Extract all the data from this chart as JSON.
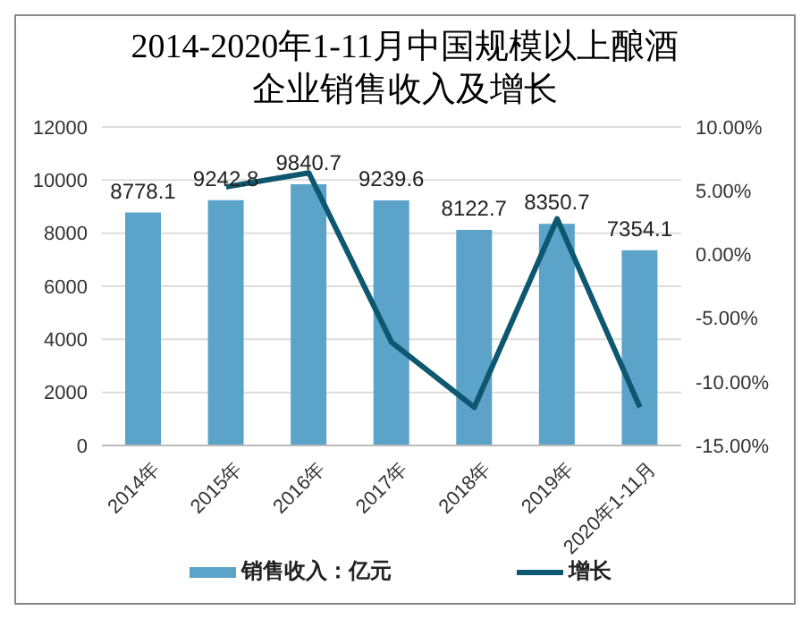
{
  "chart_data": {
    "type": "bar",
    "title": "2014-2020年1-11月中国规模以上酿酒企业销售收入及增长",
    "categories": [
      "2014年",
      "2015年",
      "2016年",
      "2017年",
      "2018年",
      "2019年",
      "2020年1-11月"
    ],
    "series": [
      {
        "name": "销售收入：亿元",
        "color": "#5ba3c9",
        "values": [
          8778.1,
          9242.8,
          9840.7,
          9239.6,
          8122.7,
          8350.7,
          7354.1
        ],
        "value_labels": [
          "8778.1",
          "9242.8",
          "9840.7",
          "9239.6",
          "8122.7",
          "8350.7",
          "7354.1"
        ]
      },
      {
        "name": "增长",
        "type": "line",
        "axis": "y2",
        "color": "#0d5870",
        "values": [
          null,
          5.3,
          6.4,
          -6.9,
          -12.0,
          2.8,
          -12.0
        ]
      }
    ],
    "ylim": [
      0,
      12000
    ],
    "yticks": [
      0,
      2000,
      4000,
      6000,
      8000,
      10000,
      12000
    ],
    "y2lim": [
      -15,
      10
    ],
    "y2ticks": [
      {
        "value": -15,
        "label": "-15.00%"
      },
      {
        "value": -10,
        "label": "-10.00%"
      },
      {
        "value": -5,
        "label": "-5.00%"
      },
      {
        "value": 0,
        "label": "0.00%"
      },
      {
        "value": 5,
        "label": "5.00%"
      },
      {
        "value": 10,
        "label": "10.00%"
      }
    ],
    "grid": "y",
    "legend": "bottom",
    "marker": "none"
  }
}
